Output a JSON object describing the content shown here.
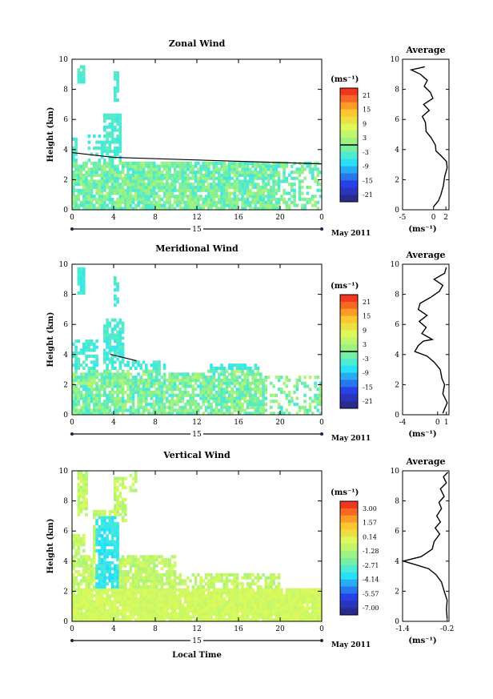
{
  "figure": {
    "date_label": "May 2011",
    "day_label": "15",
    "xlabel": "Local Time",
    "ylabel": "Height (km)",
    "unit_label": "(ms⁻¹)",
    "avg_title": "Average"
  },
  "chart_data": [
    {
      "type": "heatmap",
      "title": "Zonal Wind",
      "xlabel": "",
      "ylabel": "Height (km)",
      "x_ticks": [
        "0",
        "4",
        "8",
        "12",
        "16",
        "20",
        "0"
      ],
      "y_ticks": [
        "0",
        "2",
        "4",
        "6",
        "8",
        "10"
      ],
      "xlim": [
        0,
        24
      ],
      "ylim": [
        0,
        10
      ],
      "colorbar": {
        "label": "(ms⁻¹)",
        "ticks": [
          "21",
          "15",
          "9",
          "3",
          "-3",
          "-9",
          "-15",
          "-21"
        ],
        "range": [
          -24,
          24
        ],
        "zero_line": 0
      },
      "average_profile": {
        "title": "Average",
        "xlabel": "(ms⁻¹)",
        "x_ticks": [
          "-5",
          "0",
          "2"
        ],
        "xlim": [
          -5,
          2.5
        ],
        "ylim": [
          0,
          10
        ],
        "points": [
          [
            0.0,
            0.2
          ],
          [
            0.8,
            0.6
          ],
          [
            1.2,
            1.0
          ],
          [
            1.6,
            1.6
          ],
          [
            1.8,
            2.2
          ],
          [
            2.2,
            2.8
          ],
          [
            2.1,
            3.2
          ],
          [
            1.2,
            3.6
          ],
          [
            0.4,
            3.9
          ],
          [
            0.3,
            4.3
          ],
          [
            -0.4,
            4.8
          ],
          [
            -1.2,
            5.2
          ],
          [
            -1.3,
            5.8
          ],
          [
            -1.8,
            6.2
          ],
          [
            -0.7,
            6.6
          ],
          [
            -1.6,
            7.0
          ],
          [
            -0.1,
            7.4
          ],
          [
            -0.5,
            7.8
          ],
          [
            -1.5,
            8.2
          ],
          [
            -1.0,
            8.6
          ],
          [
            -2.1,
            9.0
          ],
          [
            -3.6,
            9.3
          ],
          [
            -1.4,
            9.5
          ]
        ]
      }
    },
    {
      "type": "heatmap",
      "title": "Meridional Wind",
      "xlabel": "",
      "ylabel": "Height (km)",
      "x_ticks": [
        "0",
        "4",
        "8",
        "12",
        "16",
        "20",
        "0"
      ],
      "y_ticks": [
        "0",
        "2",
        "4",
        "6",
        "8",
        "10"
      ],
      "xlim": [
        0,
        24
      ],
      "ylim": [
        0,
        10
      ],
      "colorbar": {
        "label": "(ms⁻¹)",
        "ticks": [
          "21",
          "15",
          "9",
          "3",
          "-3",
          "-9",
          "-15",
          "-21"
        ],
        "range": [
          -24,
          24
        ],
        "zero_line": 0
      },
      "average_profile": {
        "title": "Average",
        "xlabel": "(ms⁻¹)",
        "x_ticks": [
          "-4",
          "0",
          "1"
        ],
        "xlim": [
          -4,
          1.3
        ],
        "ylim": [
          0,
          10
        ],
        "points": [
          [
            0.6,
            0.1
          ],
          [
            1.1,
            0.8
          ],
          [
            0.6,
            1.4
          ],
          [
            0.8,
            2.0
          ],
          [
            0.5,
            2.4
          ],
          [
            0.3,
            3.0
          ],
          [
            -0.4,
            3.5
          ],
          [
            -1.2,
            3.9
          ],
          [
            -2.6,
            4.2
          ],
          [
            -2.2,
            4.6
          ],
          [
            -1.6,
            4.9
          ],
          [
            -0.6,
            5.0
          ],
          [
            -1.8,
            5.4
          ],
          [
            -1.3,
            5.8
          ],
          [
            -2.1,
            6.2
          ],
          [
            -1.2,
            6.6
          ],
          [
            -2.2,
            7.0
          ],
          [
            -2.0,
            7.4
          ],
          [
            -0.8,
            7.8
          ],
          [
            0.2,
            8.2
          ],
          [
            0.6,
            8.6
          ],
          [
            -0.4,
            9.0
          ],
          [
            0.8,
            9.4
          ],
          [
            1.0,
            9.8
          ]
        ]
      }
    },
    {
      "type": "heatmap",
      "title": "Vertical Wind",
      "xlabel": "Local Time",
      "ylabel": "Height (km)",
      "x_ticks": [
        "0",
        "4",
        "8",
        "12",
        "16",
        "20",
        "0"
      ],
      "y_ticks": [
        "0",
        "2",
        "4",
        "6",
        "8",
        "10"
      ],
      "xlim": [
        0,
        24
      ],
      "ylim": [
        0,
        10
      ],
      "colorbar": {
        "label": "(ms⁻¹)",
        "ticks": [
          "3.00",
          "1.57",
          "0.14",
          "-1.28",
          "-2.71",
          "-4.14",
          "-5.57",
          "-7.00"
        ],
        "range": [
          -7.7,
          3.7
        ],
        "zero_line": null
      },
      "average_profile": {
        "title": "Average",
        "xlabel": "(ms⁻¹)",
        "x_ticks": [
          "-1.4",
          "-0.2"
        ],
        "xlim": [
          -1.4,
          -0.15
        ],
        "ylim": [
          0,
          10
        ],
        "points": [
          [
            -0.2,
            0.2
          ],
          [
            -0.22,
            0.8
          ],
          [
            -0.2,
            1.4
          ],
          [
            -0.28,
            2.0
          ],
          [
            -0.35,
            2.6
          ],
          [
            -0.5,
            3.1
          ],
          [
            -0.7,
            3.5
          ],
          [
            -1.1,
            3.8
          ],
          [
            -1.38,
            4.0
          ],
          [
            -0.9,
            4.3
          ],
          [
            -0.6,
            4.8
          ],
          [
            -0.55,
            5.3
          ],
          [
            -0.4,
            5.8
          ],
          [
            -0.52,
            6.2
          ],
          [
            -0.38,
            6.6
          ],
          [
            -0.48,
            7.0
          ],
          [
            -0.35,
            7.5
          ],
          [
            -0.42,
            7.9
          ],
          [
            -0.28,
            8.3
          ],
          [
            -0.38,
            8.8
          ],
          [
            -0.22,
            9.2
          ],
          [
            -0.3,
            9.6
          ],
          [
            -0.18,
            9.9
          ]
        ]
      }
    }
  ]
}
